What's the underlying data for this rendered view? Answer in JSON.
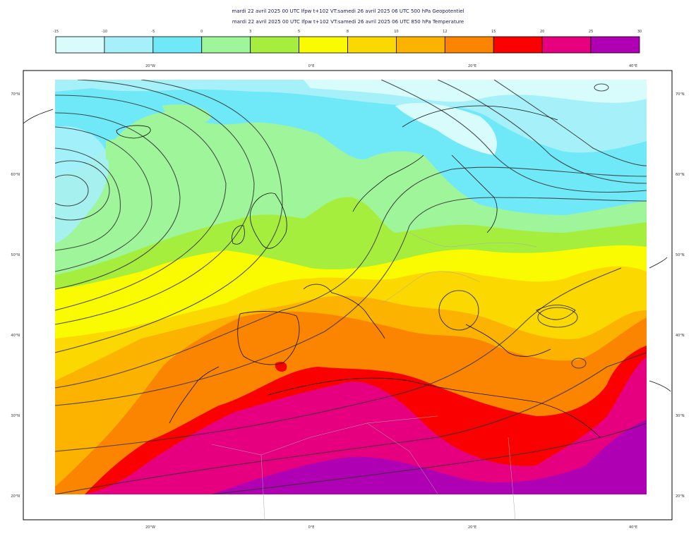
{
  "header": {
    "line1": "mardi 22 avril 2025 00 UTC Ifpw t+102 VT:samedi 26 avril 2025 06 UTC 500 hPa  Geopotentiel",
    "line2": "mardi 22 avril 2025 00 UTC Ifpw t+102 VT:samedi 26 avril 2025 06 UTC 850 hPa  Temperature"
  },
  "legend": {
    "ticks": [
      "-15",
      "-10",
      "-5",
      "0",
      "3",
      "5",
      "8",
      "10",
      "12",
      "15",
      "20",
      "25",
      "30"
    ],
    "colors": [
      "#d8fbfb",
      "#a6f1f9",
      "#6fe9f7",
      "#9ef59a",
      "#a6ee3e",
      "#fbfb00",
      "#fbd800",
      "#fbb300",
      "#fb8400",
      "#fb0000",
      "#e60080",
      "#b000b4"
    ]
  },
  "axes": {
    "top_lon": [
      "20°W",
      "0°E",
      "20°E",
      "40°E"
    ],
    "bottom_lon": [
      "20°W",
      "0°E",
      "20°E",
      "40°E"
    ],
    "left_lat": [
      "70°N",
      "60°N",
      "50°N",
      "40°N",
      "30°N",
      "20°N"
    ],
    "right_lat": [
      "70°N",
      "60°N",
      "50°N",
      "40°N",
      "30°N",
      "20°N"
    ]
  }
}
